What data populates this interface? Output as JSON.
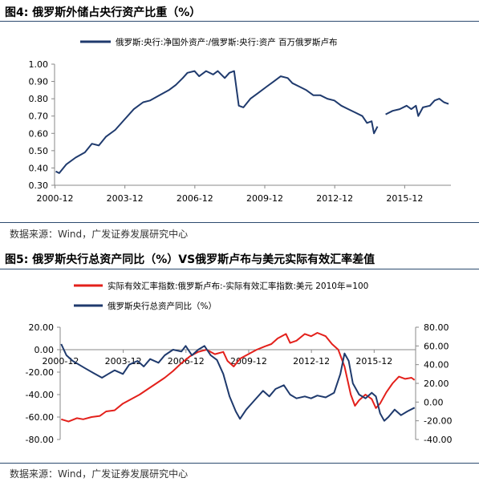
{
  "charts": [
    {
      "figure_title": "图4: 俄罗斯外储占央行资产比重（%）",
      "source": "数据来源：Wind，广发证券发展研究中心"
    },
    {
      "figure_title": "图5: 俄罗斯央行总资产同比（%）VS俄罗斯卢布与美元实际有效汇率差值",
      "source": "数据来源：Wind，广发证券发展研究中心"
    }
  ],
  "chart_data": [
    {
      "type": "line",
      "title": "",
      "x_ticks": [
        "2000-12",
        "2003-12",
        "2006-12",
        "2009-12",
        "2012-12",
        "2015-12"
      ],
      "x_range": [
        2000.9,
        2017.9
      ],
      "y_ticks": [
        "0.30",
        "0.40",
        "0.50",
        "0.60",
        "0.70",
        "0.80",
        "0.90",
        "1.00"
      ],
      "ylim": [
        0.3,
        1.0
      ],
      "legend_position": "top",
      "grid": false,
      "series": [
        {
          "name": "俄罗斯:央行:净国外资产:/俄罗斯:央行:资产 百万俄罗斯卢布",
          "color": "#1f3a6d",
          "segments": [
            [
              [
                2000.95,
                0.38
              ],
              [
                2001.1,
                0.37
              ],
              [
                2001.4,
                0.42
              ],
              [
                2001.8,
                0.46
              ],
              [
                2002.2,
                0.49
              ],
              [
                2002.5,
                0.54
              ],
              [
                2002.8,
                0.53
              ],
              [
                2003.1,
                0.58
              ],
              [
                2003.5,
                0.62
              ],
              [
                2003.9,
                0.68
              ],
              [
                2004.3,
                0.74
              ],
              [
                2004.7,
                0.78
              ],
              [
                2005.0,
                0.79
              ],
              [
                2005.4,
                0.82
              ],
              [
                2005.8,
                0.85
              ],
              [
                2006.1,
                0.88
              ],
              [
                2006.4,
                0.92
              ],
              [
                2006.6,
                0.95
              ],
              [
                2006.9,
                0.96
              ],
              [
                2007.1,
                0.93
              ],
              [
                2007.4,
                0.96
              ],
              [
                2007.7,
                0.94
              ],
              [
                2007.9,
                0.96
              ],
              [
                2008.2,
                0.92
              ],
              [
                2008.4,
                0.95
              ],
              [
                2008.6,
                0.96
              ],
              [
                2008.7,
                0.86
              ],
              [
                2008.8,
                0.76
              ],
              [
                2009.0,
                0.75
              ],
              [
                2009.3,
                0.8
              ],
              [
                2009.6,
                0.83
              ],
              [
                2010.0,
                0.87
              ],
              [
                2010.3,
                0.9
              ],
              [
                2010.6,
                0.93
              ],
              [
                2010.9,
                0.92
              ],
              [
                2011.1,
                0.89
              ],
              [
                2011.4,
                0.87
              ],
              [
                2011.7,
                0.85
              ],
              [
                2012.0,
                0.82
              ],
              [
                2012.3,
                0.82
              ],
              [
                2012.6,
                0.8
              ],
              [
                2012.9,
                0.79
              ],
              [
                2013.2,
                0.76
              ],
              [
                2013.5,
                0.74
              ],
              [
                2013.8,
                0.72
              ],
              [
                2014.1,
                0.7
              ],
              [
                2014.3,
                0.66
              ],
              [
                2014.5,
                0.67
              ],
              [
                2014.6,
                0.6
              ],
              [
                2014.75,
                0.64
              ]
            ],
            [
              [
                2015.1,
                0.71
              ],
              [
                2015.4,
                0.73
              ],
              [
                2015.7,
                0.74
              ],
              [
                2016.0,
                0.76
              ],
              [
                2016.2,
                0.74
              ],
              [
                2016.4,
                0.76
              ],
              [
                2016.5,
                0.7
              ],
              [
                2016.7,
                0.75
              ],
              [
                2017.0,
                0.76
              ],
              [
                2017.2,
                0.79
              ],
              [
                2017.4,
                0.8
              ],
              [
                2017.6,
                0.78
              ],
              [
                2017.8,
                0.77
              ]
            ]
          ]
        }
      ]
    },
    {
      "type": "line",
      "title": "",
      "x_ticks": [
        "2000-12",
        "2003-12",
        "2006-12",
        "2009-12",
        "2012-12",
        "2015-12"
      ],
      "x_range": [
        2000.9,
        2017.9
      ],
      "y_left_ticks": [
        "-80.00",
        "-60.00",
        "-40.00",
        "-20.00",
        "0.00",
        "20.00"
      ],
      "y_left_range": [
        -80,
        20
      ],
      "y_right_ticks": [
        "-40.00",
        "-20.00",
        "0.00",
        "20.00",
        "40.00",
        "60.00",
        "80.00"
      ],
      "y_right_range": [
        -40,
        80
      ],
      "legend_position": "top",
      "grid": false,
      "series": [
        {
          "name": "实际有效汇率指数:俄罗斯卢布:-实际有效汇率指数:美元 2010年=100",
          "axis": "left",
          "color": "#e3201b",
          "points": [
            [
              2000.95,
              -62
            ],
            [
              2001.3,
              -64
            ],
            [
              2001.7,
              -61
            ],
            [
              2002.0,
              -62
            ],
            [
              2002.4,
              -60
            ],
            [
              2002.8,
              -59
            ],
            [
              2003.1,
              -55
            ],
            [
              2003.5,
              -54
            ],
            [
              2003.9,
              -48
            ],
            [
              2004.3,
              -44
            ],
            [
              2004.7,
              -40
            ],
            [
              2005.1,
              -35
            ],
            [
              2005.5,
              -30
            ],
            [
              2005.9,
              -25
            ],
            [
              2006.3,
              -19
            ],
            [
              2006.7,
              -12
            ],
            [
              2007.1,
              -6
            ],
            [
              2007.5,
              -2
            ],
            [
              2007.9,
              0
            ],
            [
              2008.3,
              -4
            ],
            [
              2008.7,
              -2
            ],
            [
              2008.9,
              -10
            ],
            [
              2009.2,
              -15
            ],
            [
              2009.5,
              -8
            ],
            [
              2009.9,
              -4
            ],
            [
              2010.3,
              0
            ],
            [
              2010.7,
              3
            ],
            [
              2011.0,
              5
            ],
            [
              2011.3,
              10
            ],
            [
              2011.7,
              14
            ],
            [
              2011.9,
              6
            ],
            [
              2012.2,
              8
            ],
            [
              2012.6,
              14
            ],
            [
              2012.9,
              12
            ],
            [
              2013.2,
              15
            ],
            [
              2013.6,
              12
            ],
            [
              2013.9,
              5
            ],
            [
              2014.2,
              0
            ],
            [
              2014.5,
              -15
            ],
            [
              2014.8,
              -40
            ],
            [
              2015.0,
              -50
            ],
            [
              2015.2,
              -45
            ],
            [
              2015.5,
              -40
            ],
            [
              2015.8,
              -44
            ],
            [
              2016.0,
              -52
            ],
            [
              2016.2,
              -48
            ],
            [
              2016.5,
              -38
            ],
            [
              2016.8,
              -30
            ],
            [
              2017.1,
              -24
            ],
            [
              2017.4,
              -26
            ],
            [
              2017.7,
              -25
            ],
            [
              2017.85,
              -27
            ]
          ]
        },
        {
          "name": "俄罗斯央行总资产同比（%）",
          "axis": "right",
          "color": "#1f3a6d",
          "points": [
            [
              2000.95,
              62
            ],
            [
              2001.2,
              50
            ],
            [
              2001.5,
              44
            ],
            [
              2001.8,
              40
            ],
            [
              2002.1,
              36
            ],
            [
              2002.5,
              31
            ],
            [
              2002.9,
              26
            ],
            [
              2003.2,
              30
            ],
            [
              2003.5,
              34
            ],
            [
              2003.9,
              30
            ],
            [
              2004.2,
              40
            ],
            [
              2004.6,
              44
            ],
            [
              2004.9,
              38
            ],
            [
              2005.2,
              46
            ],
            [
              2005.6,
              42
            ],
            [
              2005.9,
              50
            ],
            [
              2006.3,
              56
            ],
            [
              2006.7,
              54
            ],
            [
              2006.9,
              60
            ],
            [
              2007.2,
              50
            ],
            [
              2007.5,
              56
            ],
            [
              2007.8,
              60
            ],
            [
              2008.1,
              50
            ],
            [
              2008.4,
              45
            ],
            [
              2008.7,
              30
            ],
            [
              2009.0,
              6
            ],
            [
              2009.3,
              -10
            ],
            [
              2009.5,
              -18
            ],
            [
              2009.8,
              -8
            ],
            [
              2010.2,
              2
            ],
            [
              2010.6,
              12
            ],
            [
              2010.9,
              6
            ],
            [
              2011.2,
              14
            ],
            [
              2011.6,
              18
            ],
            [
              2011.9,
              8
            ],
            [
              2012.2,
              4
            ],
            [
              2012.6,
              6
            ],
            [
              2012.9,
              4
            ],
            [
              2013.2,
              7
            ],
            [
              2013.6,
              5
            ],
            [
              2014.0,
              10
            ],
            [
              2014.3,
              30
            ],
            [
              2014.5,
              52
            ],
            [
              2014.7,
              44
            ],
            [
              2014.9,
              20
            ],
            [
              2015.2,
              8
            ],
            [
              2015.5,
              4
            ],
            [
              2015.8,
              10
            ],
            [
              2016.0,
              6
            ],
            [
              2016.2,
              -12
            ],
            [
              2016.4,
              -20
            ],
            [
              2016.6,
              -16
            ],
            [
              2016.9,
              -8
            ],
            [
              2017.2,
              -14
            ],
            [
              2017.5,
              -10
            ],
            [
              2017.85,
              -6
            ]
          ]
        }
      ]
    }
  ]
}
